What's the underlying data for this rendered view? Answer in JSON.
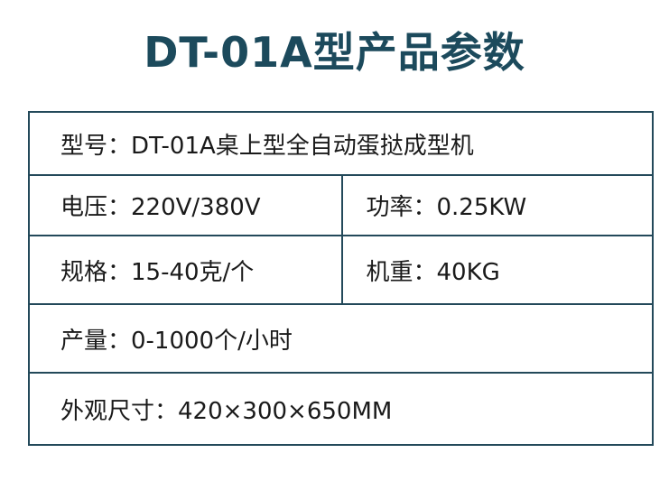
{
  "title": "DT-01A型产品参数",
  "rows": [
    [
      {
        "text": "型号：DT-01A桌上型全自动蛋挞成型机"
      }
    ],
    [
      {
        "text": "电压：220V/380V"
      },
      {
        "text": "功率：0.25KW"
      }
    ],
    [
      {
        "text": "规格：15-40克/个"
      },
      {
        "text": "机重：40KG"
      }
    ],
    [
      {
        "text": "产量：0-1000个/小时"
      }
    ],
    [
      {
        "text": "外观尺寸：420×300×650MM"
      }
    ]
  ],
  "colors": {
    "title": "#1c4a5c",
    "border": "#23495a"
  }
}
